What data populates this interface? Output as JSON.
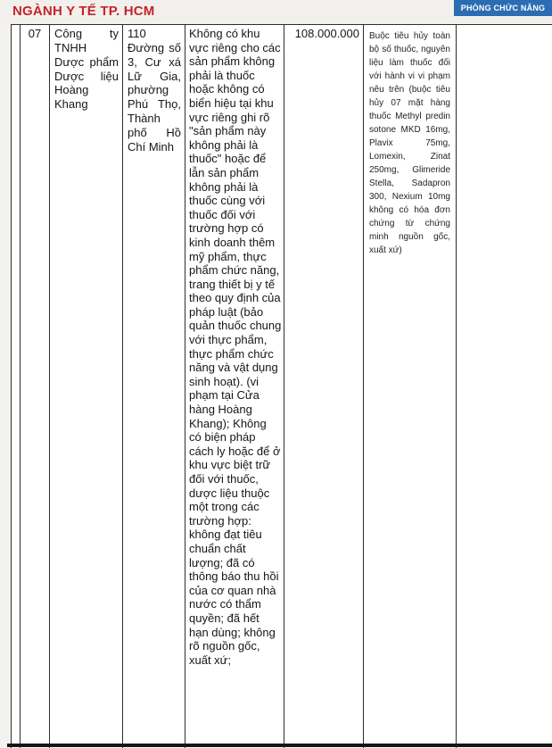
{
  "header": {
    "title": "NGÀNH Y TẾ TP. HCM",
    "menu_button_label": "PHÒNG CHỨC NĂNG"
  },
  "colors": {
    "title_red": "#c5242a",
    "button_blue": "#2b6cb3",
    "cell_background": "#ffffff",
    "page_background": "#f2f0ed",
    "border": "#2e2e2e"
  },
  "table": {
    "row": {
      "stt": "07",
      "company": "Công ty TNHH Dược phẩm Dược liệu Hoàng Khang",
      "address": "110 Đường số 3, Cư xá Lữ Gia, phường Phú Thọ, Thành phố Hồ Chí Minh",
      "violation": "Không có khu vực riêng cho các sản phẩm không phải là thuốc hoặc không có biển hiệu tại khu vực riêng ghi rõ \"sản phẩm này không phải là thuốc\" hoặc để lẫn sản phẩm không phải là thuốc cùng với thuốc đối với trường hợp có kinh doanh thêm mỹ phẩm, thực phẩm chức năng, trang thiết bị y tế theo quy định của pháp luật (bảo quản thuốc chung với thực phẩm, thực phẩm chức năng và vật dụng sinh hoạt). (vi phạm tại Cửa hàng Hoàng Khang); Không có biện pháp cách ly hoặc để ở khu vực biệt trữ đối với thuốc, dược liệu thuộc một trong các trường hợp: không đạt tiêu chuẩn chất lượng; đã có thông báo thu hồi của cơ quan nhà nước có thẩm quyền; đã hết hạn dùng; không rõ nguồn gốc, xuất xứ;",
      "fine_amount": "108.000.000",
      "remediation": "Buộc tiêu hủy toàn bộ số thuốc, nguyên liệu làm thuốc đối với hành vi vi phạm nêu trên (buộc tiêu hủy 07 mặt hàng thuốc Methyl predin sotone MKD 16mg, Plavix 75mg, Lomexin, Zinat 250mg, Glimeride Stella, Sadapron 300, Nexium 10mg không có hóa đơn chứng từ chứng minh nguồn gốc, xuất xứ)"
    }
  }
}
